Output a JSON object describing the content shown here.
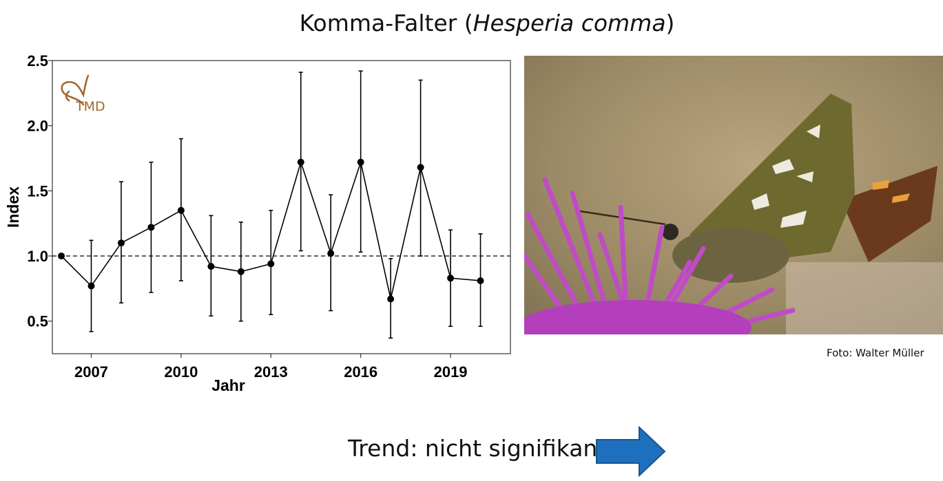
{
  "page": {
    "title_main": "Komma-Falter (",
    "title_species": "Hesperia comma",
    "title_close": ")",
    "photo_credit": "Foto: Walter Müller",
    "trend_text": "Trend: nicht signifikant",
    "logo_text": "TMD",
    "colors": {
      "logo": "#a0692e",
      "arrow": "#1f6fbf",
      "line": "#000000"
    },
    "icons": [
      "butterfly-logo-icon",
      "trend-arrow-right-icon"
    ]
  },
  "chart_data": {
    "type": "line",
    "title": "",
    "xlabel": "Jahr",
    "ylabel": "Index",
    "xlim": [
      2005.7,
      2021.0
    ],
    "ylim": [
      0.25,
      2.5
    ],
    "xticks": [
      2007,
      2010,
      2013,
      2016,
      2019
    ],
    "yticks": [
      0.5,
      1.0,
      1.5,
      2.0,
      2.5
    ],
    "ytick_labels": [
      "0.5",
      "1.0",
      "1.5",
      "2.0",
      "2.5"
    ],
    "reference_line": 1.0,
    "reference_line_style": "dashed",
    "grid": false,
    "series": [
      {
        "x": [
          2006,
          2007,
          2008,
          2009,
          2010,
          2011,
          2012,
          2013,
          2014,
          2015,
          2016,
          2017,
          2018,
          2019,
          2020
        ],
        "values": [
          1.0,
          0.77,
          1.1,
          1.22,
          1.35,
          0.92,
          0.88,
          0.94,
          1.72,
          1.02,
          1.72,
          0.67,
          1.68,
          0.83,
          0.81
        ],
        "lower": [
          1.0,
          0.42,
          0.64,
          0.72,
          0.81,
          0.54,
          0.5,
          0.55,
          1.04,
          0.58,
          1.03,
          0.37,
          1.0,
          0.46,
          0.46
        ],
        "upper": [
          1.0,
          1.12,
          1.57,
          1.72,
          1.9,
          1.31,
          1.26,
          1.35,
          2.41,
          1.47,
          2.42,
          0.98,
          2.35,
          1.2,
          1.17
        ]
      }
    ]
  }
}
